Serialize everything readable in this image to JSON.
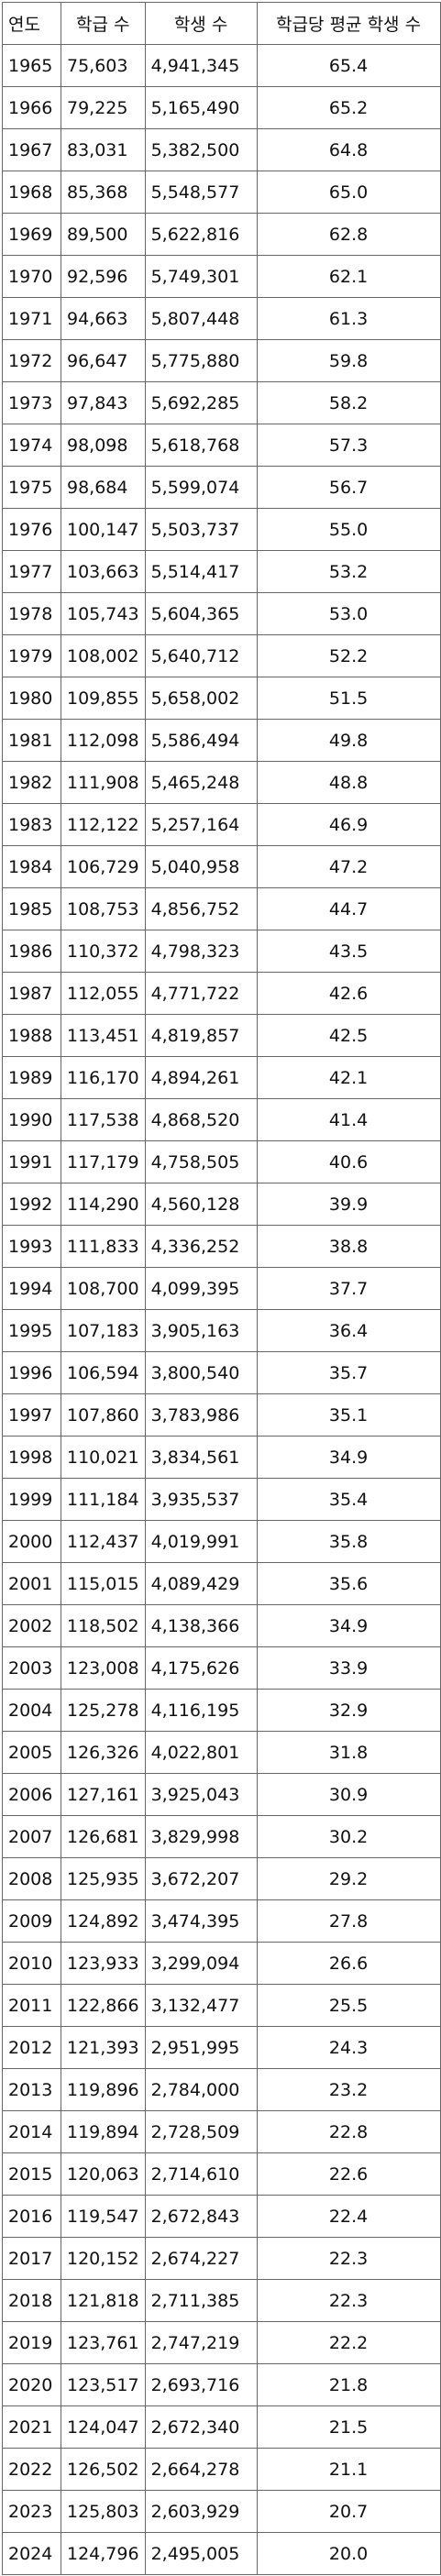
{
  "table": {
    "headers": [
      "연도",
      "학급 수",
      "학생 수",
      "학급당 평균 학생 수"
    ],
    "rows": [
      [
        "1965",
        "75,603",
        "4,941,345",
        "65.4"
      ],
      [
        "1966",
        "79,225",
        "5,165,490",
        "65.2"
      ],
      [
        "1967",
        "83,031",
        "5,382,500",
        "64.8"
      ],
      [
        "1968",
        "85,368",
        "5,548,577",
        "65.0"
      ],
      [
        "1969",
        "89,500",
        "5,622,816",
        "62.8"
      ],
      [
        "1970",
        "92,596",
        "5,749,301",
        "62.1"
      ],
      [
        "1971",
        "94,663",
        "5,807,448",
        "61.3"
      ],
      [
        "1972",
        "96,647",
        "5,775,880",
        "59.8"
      ],
      [
        "1973",
        "97,843",
        "5,692,285",
        "58.2"
      ],
      [
        "1974",
        "98,098",
        "5,618,768",
        "57.3"
      ],
      [
        "1975",
        "98,684",
        "5,599,074",
        "56.7"
      ],
      [
        "1976",
        "100,147",
        "5,503,737",
        "55.0"
      ],
      [
        "1977",
        "103,663",
        "5,514,417",
        "53.2"
      ],
      [
        "1978",
        "105,743",
        "5,604,365",
        "53.0"
      ],
      [
        "1979",
        "108,002",
        "5,640,712",
        "52.2"
      ],
      [
        "1980",
        "109,855",
        "5,658,002",
        "51.5"
      ],
      [
        "1981",
        "112,098",
        "5,586,494",
        "49.8"
      ],
      [
        "1982",
        "111,908",
        "5,465,248",
        "48.8"
      ],
      [
        "1983",
        "112,122",
        "5,257,164",
        "46.9"
      ],
      [
        "1984",
        "106,729",
        "5,040,958",
        "47.2"
      ],
      [
        "1985",
        "108,753",
        "4,856,752",
        "44.7"
      ],
      [
        "1986",
        "110,372",
        "4,798,323",
        "43.5"
      ],
      [
        "1987",
        "112,055",
        "4,771,722",
        "42.6"
      ],
      [
        "1988",
        "113,451",
        "4,819,857",
        "42.5"
      ],
      [
        "1989",
        "116,170",
        "4,894,261",
        "42.1"
      ],
      [
        "1990",
        "117,538",
        "4,868,520",
        "41.4"
      ],
      [
        "1991",
        "117,179",
        "4,758,505",
        "40.6"
      ],
      [
        "1992",
        "114,290",
        "4,560,128",
        "39.9"
      ],
      [
        "1993",
        "111,833",
        "4,336,252",
        "38.8"
      ],
      [
        "1994",
        "108,700",
        "4,099,395",
        "37.7"
      ],
      [
        "1995",
        "107,183",
        "3,905,163",
        "36.4"
      ],
      [
        "1996",
        "106,594",
        "3,800,540",
        "35.7"
      ],
      [
        "1997",
        "107,860",
        "3,783,986",
        "35.1"
      ],
      [
        "1998",
        "110,021",
        "3,834,561",
        "34.9"
      ],
      [
        "1999",
        "111,184",
        "3,935,537",
        "35.4"
      ],
      [
        "2000",
        "112,437",
        "4,019,991",
        "35.8"
      ],
      [
        "2001",
        "115,015",
        "4,089,429",
        "35.6"
      ],
      [
        "2002",
        "118,502",
        "4,138,366",
        "34.9"
      ],
      [
        "2003",
        "123,008",
        "4,175,626",
        "33.9"
      ],
      [
        "2004",
        "125,278",
        "4,116,195",
        "32.9"
      ],
      [
        "2005",
        "126,326",
        "4,022,801",
        "31.8"
      ],
      [
        "2006",
        "127,161",
        "3,925,043",
        "30.9"
      ],
      [
        "2007",
        "126,681",
        "3,829,998",
        "30.2"
      ],
      [
        "2008",
        "125,935",
        "3,672,207",
        "29.2"
      ],
      [
        "2009",
        "124,892",
        "3,474,395",
        "27.8"
      ],
      [
        "2010",
        "123,933",
        "3,299,094",
        "26.6"
      ],
      [
        "2011",
        "122,866",
        "3,132,477",
        "25.5"
      ],
      [
        "2012",
        "121,393",
        "2,951,995",
        "24.3"
      ],
      [
        "2013",
        "119,896",
        "2,784,000",
        "23.2"
      ],
      [
        "2014",
        "119,894",
        "2,728,509",
        "22.8"
      ],
      [
        "2015",
        "120,063",
        "2,714,610",
        "22.6"
      ],
      [
        "2016",
        "119,547",
        "2,672,843",
        "22.4"
      ],
      [
        "2017",
        "120,152",
        "2,674,227",
        "22.3"
      ],
      [
        "2018",
        "121,818",
        "2,711,385",
        "22.3"
      ],
      [
        "2019",
        "123,761",
        "2,747,219",
        "22.2"
      ],
      [
        "2020",
        "123,517",
        "2,693,716",
        "21.8"
      ],
      [
        "2021",
        "124,047",
        "2,672,340",
        "21.5"
      ],
      [
        "2022",
        "126,502",
        "2,664,278",
        "21.1"
      ],
      [
        "2023",
        "125,803",
        "2,603,929",
        "20.7"
      ],
      [
        "2024",
        "124,796",
        "2,495,005",
        "20.0"
      ]
    ]
  }
}
